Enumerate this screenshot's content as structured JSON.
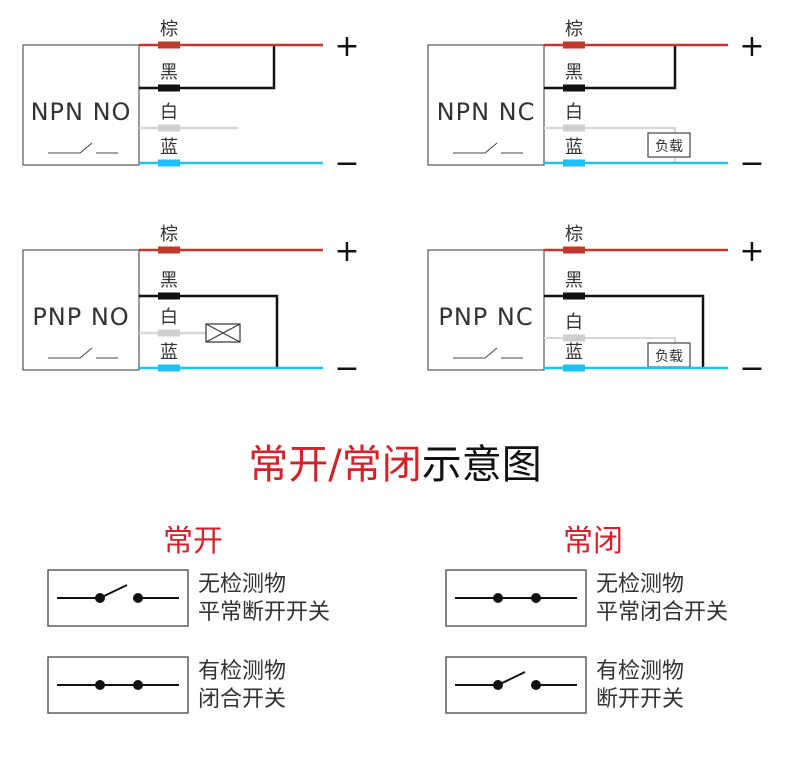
{
  "colors": {
    "brown": "#c0392b",
    "black": "#111111",
    "white": "#d6d6d6",
    "blue": "#1ec0f5",
    "accent_red": "#d2232a"
  },
  "wire_labels": {
    "brown": "棕",
    "black": "黑",
    "white": "白",
    "blue": "蓝"
  },
  "signs": {
    "plus": "+",
    "minus": "−"
  },
  "panels": [
    {
      "name": "NPN NO",
      "load_label": ""
    },
    {
      "name": "NPN NC",
      "load_label": "负载"
    },
    {
      "name": "PNP NO",
      "load_label": ""
    },
    {
      "name": "PNP NC",
      "load_label": "负载"
    }
  ],
  "title": {
    "red_part": "常开/常闭",
    "black_part": "示意图"
  },
  "legend": {
    "no": {
      "heading": "常开",
      "rows": [
        {
          "line1": "无检测物",
          "line2": "平常断开开关",
          "switch": "open"
        },
        {
          "line1": "有检测物",
          "line2": "闭合开关",
          "switch": "closed"
        }
      ]
    },
    "nc": {
      "heading": "常闭",
      "rows": [
        {
          "line1": "无检测物",
          "line2": "平常闭合开关",
          "switch": "closed"
        },
        {
          "line1": "有检测物",
          "line2": "断开开关",
          "switch": "open"
        }
      ]
    }
  }
}
